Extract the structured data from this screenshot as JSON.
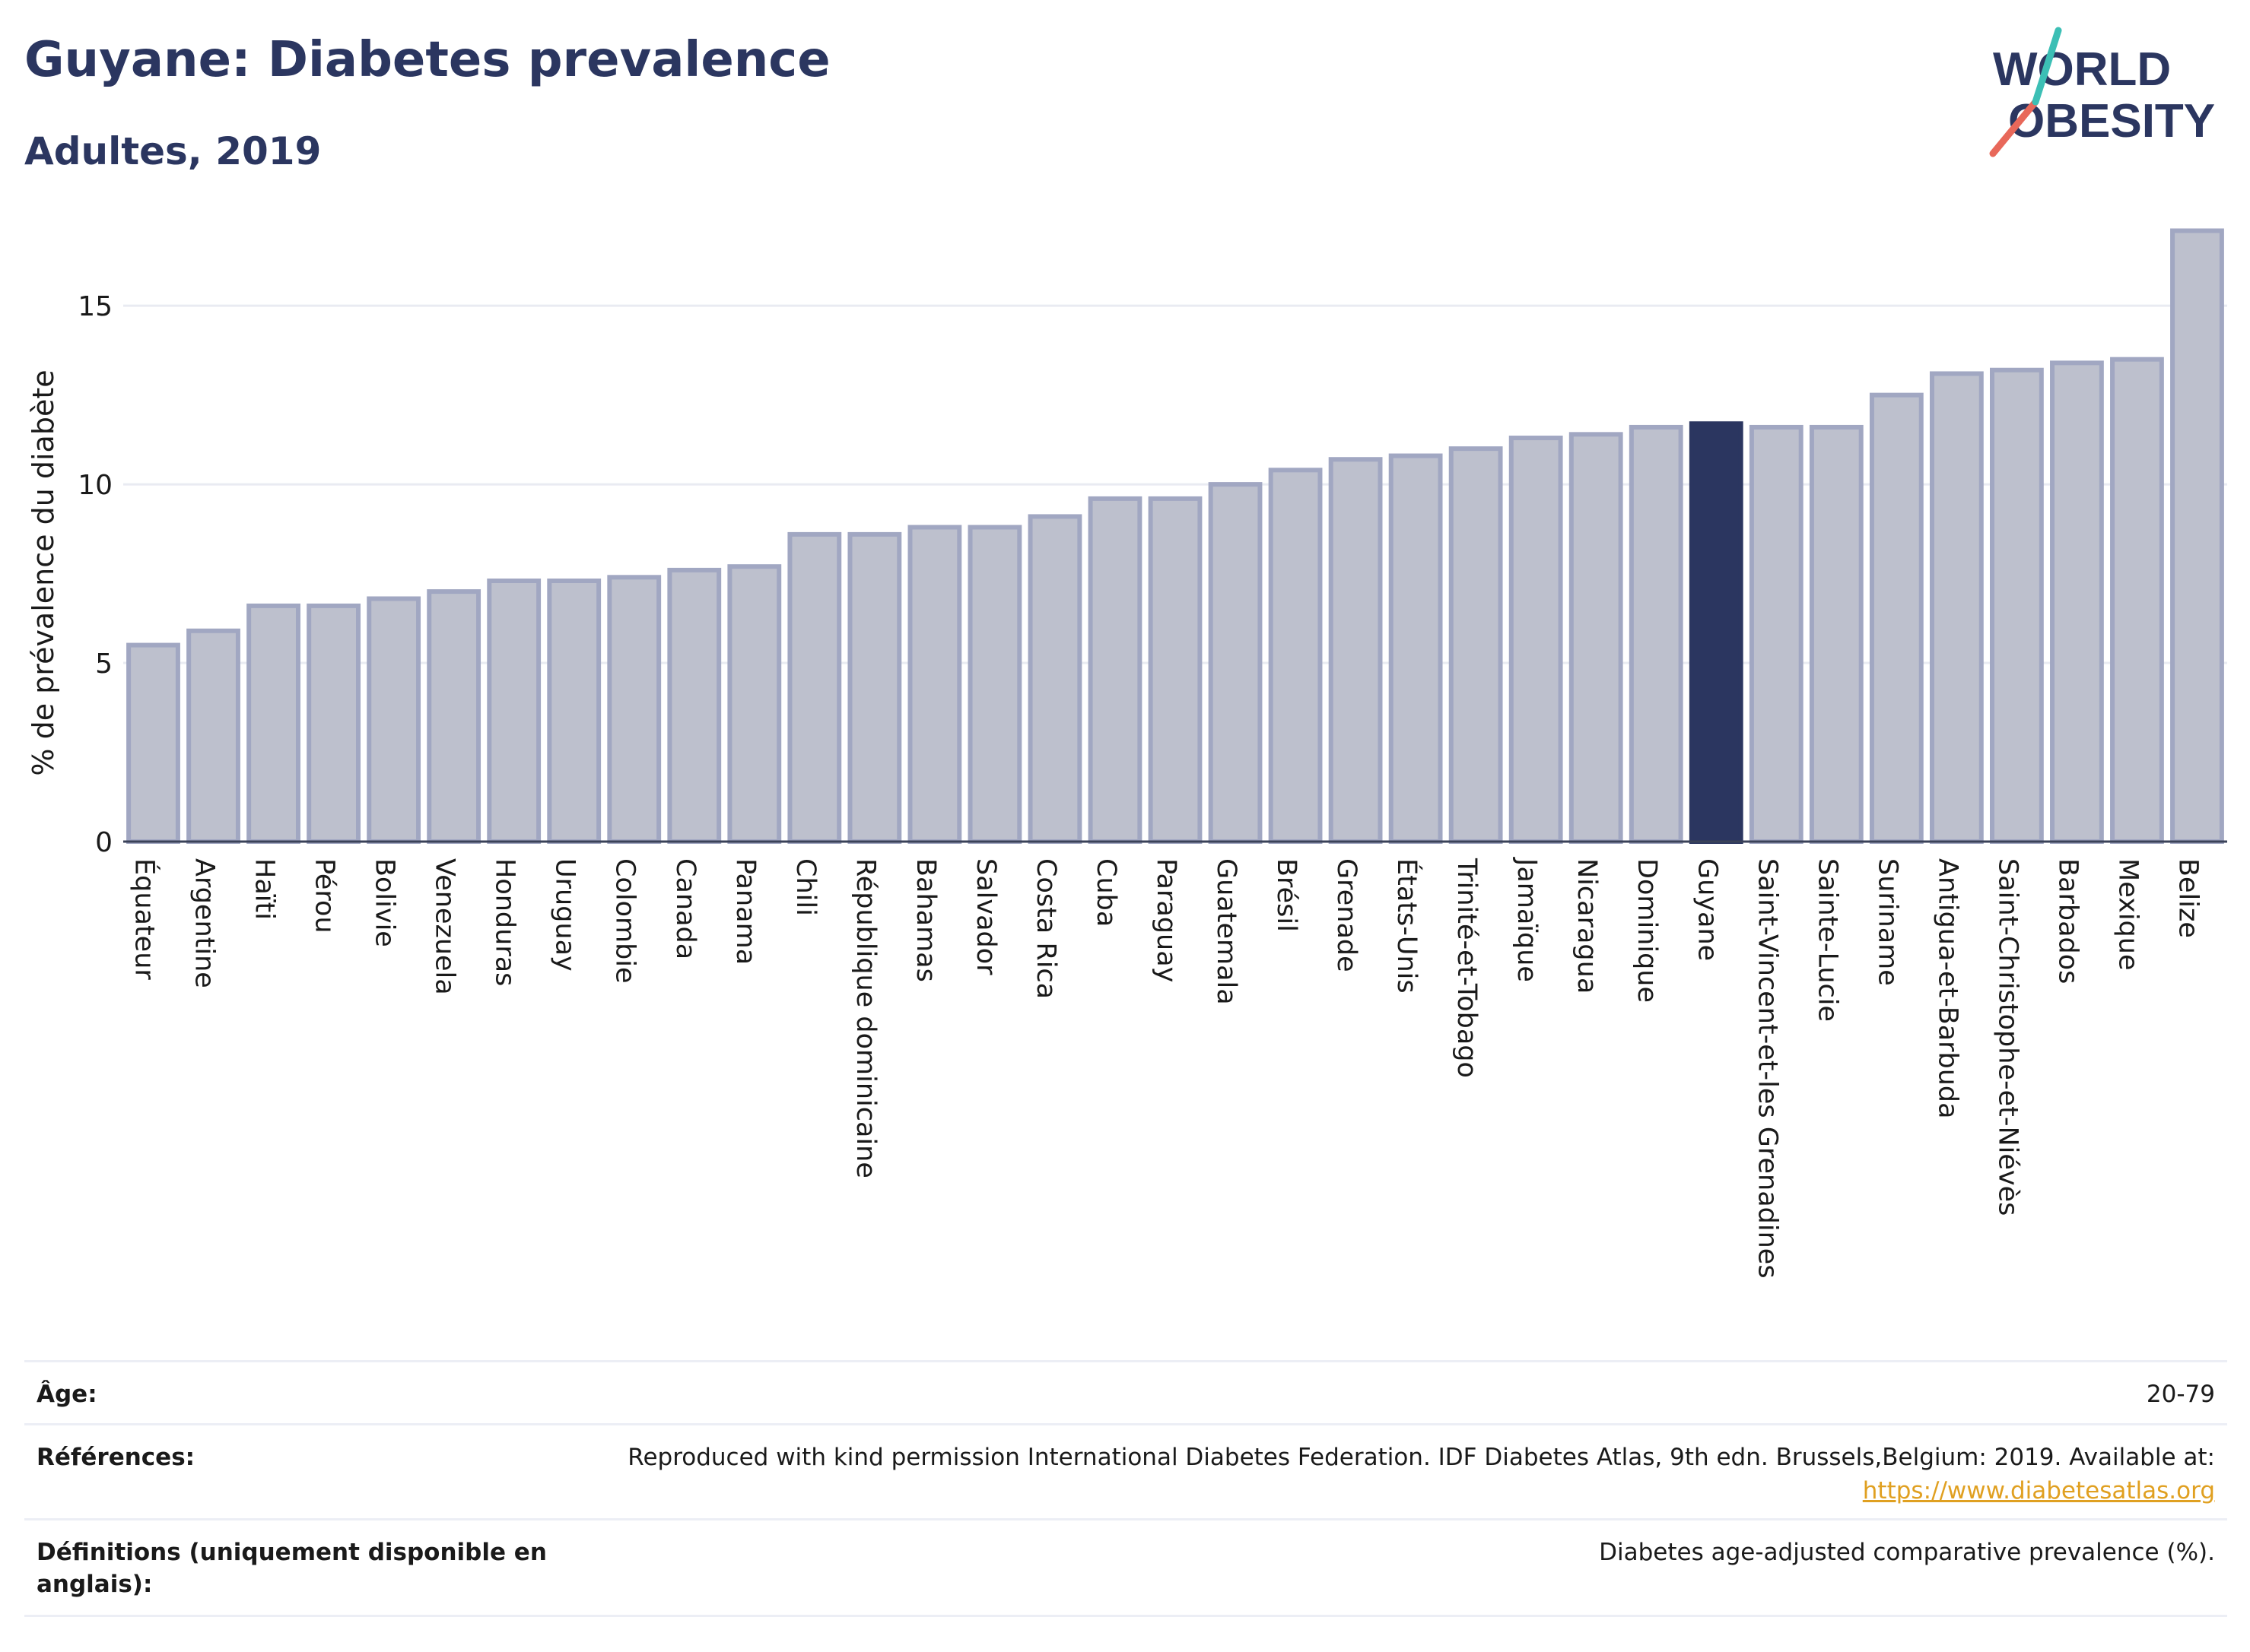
{
  "title": "Guyane: Diabetes prevalence",
  "subtitle": "Adultes, 2019",
  "logo": {
    "line1": "WORLD",
    "line2": "OBESITY"
  },
  "colors": {
    "bar": "#bdc0cd",
    "bar_outline": "#a1a7c2",
    "highlight": "#2b3660",
    "text": "#1e2a4a",
    "grid": "#e9ebf2",
    "link": "#e0a021"
  },
  "chart_data": {
    "type": "bar",
    "ylabel": "% de prévalence du diabète",
    "ylim": [
      0,
      17.6
    ],
    "yticks": [
      0,
      5,
      10,
      15
    ],
    "highlight": "Guyane",
    "categories": [
      "Équateur",
      "Argentine",
      "Haïti",
      "Pérou",
      "Bolivie",
      "Venezuela",
      "Honduras",
      "Uruguay",
      "Colombie",
      "Canada",
      "Panama",
      "Chili",
      "République dominicaine",
      "Bahamas",
      "Salvador",
      "Costa Rica",
      "Cuba",
      "Paraguay",
      "Guatemala",
      "Brésil",
      "Grenade",
      "États-Unis",
      "Trinité-et-Tobago",
      "Jamaïque",
      "Nicaragua",
      "Dominique",
      "Guyane",
      "Saint-Vincent-et-les Grenadines",
      "Sainte-Lucie",
      "Suriname",
      "Antigua-et-Barbuda",
      "Saint-Christophe-et-Niévès",
      "Barbados",
      "Mexique",
      "Belize"
    ],
    "values": [
      5.5,
      5.9,
      6.6,
      6.6,
      6.8,
      7.0,
      7.3,
      7.3,
      7.4,
      7.6,
      7.7,
      8.6,
      8.6,
      8.8,
      8.8,
      9.1,
      9.6,
      9.6,
      10.0,
      10.4,
      10.7,
      10.8,
      11.0,
      11.3,
      11.4,
      11.6,
      11.7,
      11.6,
      11.6,
      12.5,
      13.1,
      13.2,
      13.4,
      13.5,
      17.1
    ]
  },
  "info": {
    "age_label": "Âge:",
    "age_value": "20-79",
    "refs_label": "Références:",
    "refs_text": "Reproduced with kind permission International Diabetes Federation. IDF Diabetes Atlas, 9th edn. Brussels,Belgium: 2019. Available at:",
    "refs_link": "https://www.diabetesatlas.org",
    "defs_label_1": "Définitions (uniquement disponible en",
    "defs_label_2": "anglais):",
    "defs_text": "Diabetes age-adjusted comparative prevalence (%)."
  }
}
